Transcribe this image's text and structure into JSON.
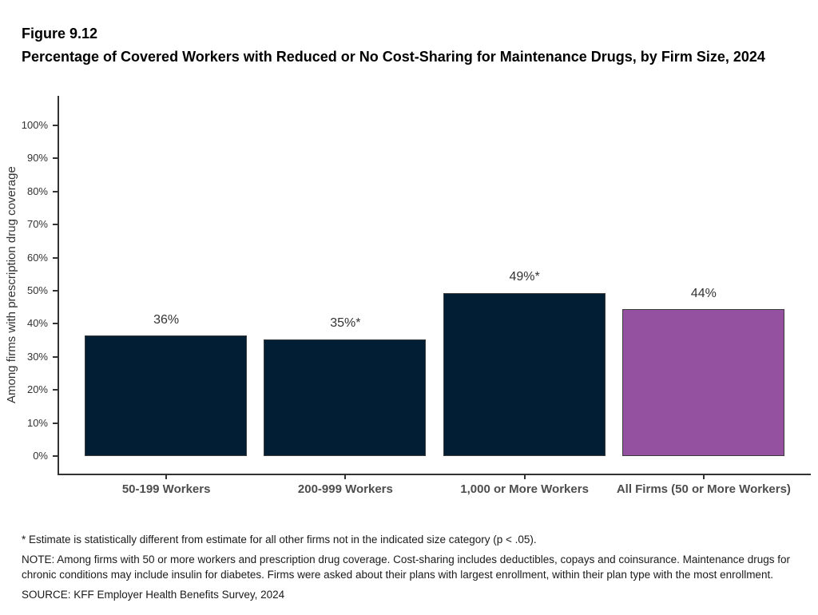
{
  "figure": {
    "number": "Figure 9.12",
    "title": "Percentage of Covered Workers with Reduced or No Cost-Sharing for Maintenance Drugs, by Firm Size, 2024"
  },
  "chart_data": {
    "type": "bar",
    "categories": [
      "50-199 Workers",
      "200-999 Workers",
      "1,000 or More Workers",
      "All Firms (50 or More Workers)"
    ],
    "values": [
      36,
      35,
      49,
      44
    ],
    "bar_labels": [
      "36%",
      "35%*",
      "49%*",
      "44%"
    ],
    "bar_colors": [
      "#011e35",
      "#011e35",
      "#011e35",
      "#9351a0"
    ],
    "bar_border_color": "#3d3d3d",
    "title": "",
    "xlabel": "",
    "ylabel": "Among firms with prescription drug coverage",
    "ylim": [
      0,
      100
    ],
    "ytick_step": 10,
    "ytick_labels": [
      "0%",
      "10%",
      "20%",
      "30%",
      "40%",
      "50%",
      "60%",
      "70%",
      "80%",
      "90%",
      "100%"
    ],
    "grid": false,
    "legend": "none"
  },
  "footnotes": {
    "asterisk": "* Estimate is statistically different from estimate for all other firms not in the indicated size category (p < .05).",
    "note": "NOTE: Among firms with 50 or more workers and prescription drug coverage. Cost-sharing includes deductibles, copays and coinsurance. Maintenance drugs for chronic conditions may include insulin for diabetes. Firms were asked about their plans with largest enrollment, within their plan type with the most enrollment.",
    "source": "SOURCE: KFF Employer Health Benefits Survey, 2024"
  }
}
